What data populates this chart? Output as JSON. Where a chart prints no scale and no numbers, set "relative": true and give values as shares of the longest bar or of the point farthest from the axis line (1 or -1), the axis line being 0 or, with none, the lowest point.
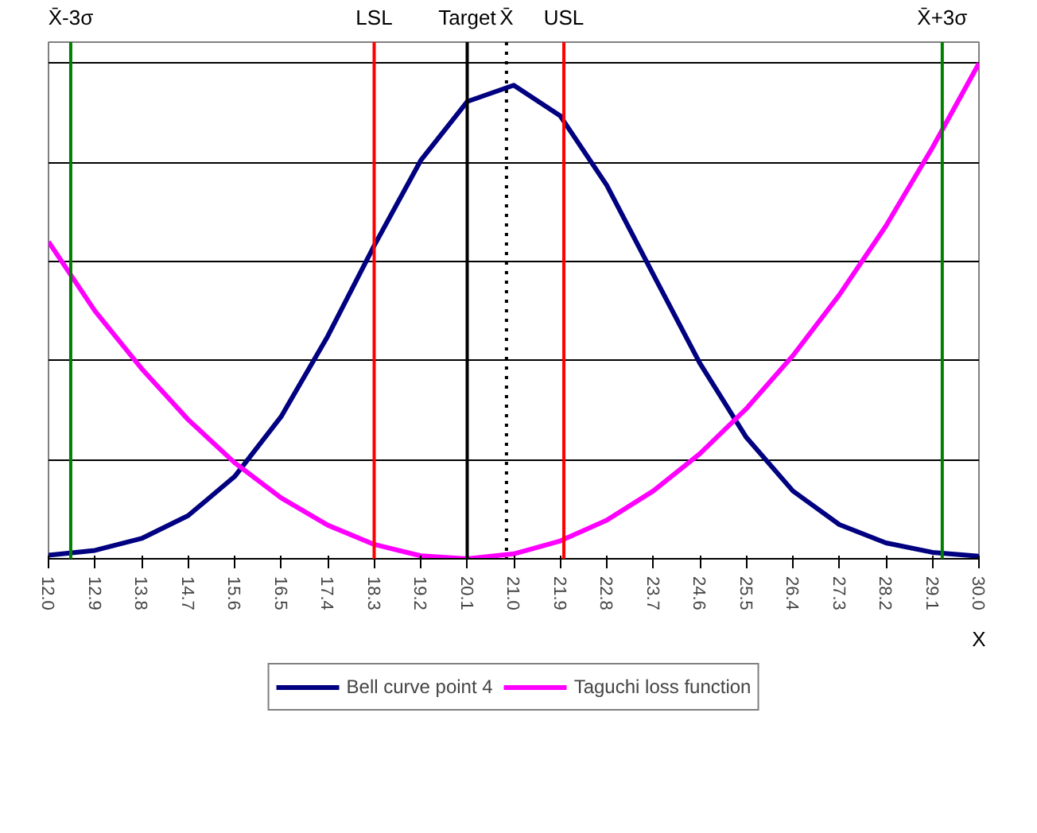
{
  "chart_data": {
    "type": "line",
    "xlabel": "X",
    "relative": true,
    "x": [
      12.0,
      12.9,
      13.8,
      14.7,
      15.6,
      16.5,
      17.4,
      18.3,
      19.2,
      20.1,
      21.0,
      21.9,
      22.8,
      23.7,
      24.6,
      25.5,
      26.4,
      27.3,
      28.2,
      29.1,
      30.0
    ],
    "series": [
      {
        "name": "Bell curve point 4",
        "color": "#000080",
        "values": [
          0.007,
          0.017,
          0.041,
          0.087,
          0.166,
          0.287,
          0.449,
          0.632,
          0.804,
          0.923,
          0.956,
          0.894,
          0.754,
          0.574,
          0.395,
          0.245,
          0.137,
          0.069,
          0.032,
          0.013,
          0.005
        ]
      },
      {
        "name": "Taguchi loss function",
        "color": "#ff00ff",
        "values": [
          0.64,
          0.5,
          0.384,
          0.281,
          0.194,
          0.123,
          0.068,
          0.029,
          0.006,
          0.0,
          0.01,
          0.036,
          0.078,
          0.137,
          0.212,
          0.303,
          0.41,
          0.533,
          0.672,
          0.83,
          1.0
        ]
      }
    ],
    "xlim": [
      12.0,
      30.0
    ],
    "xticks": [
      {
        "value": 12,
        "label": "12.0"
      },
      12.9,
      13.8,
      14.7,
      15.6,
      16.5,
      17.4,
      18.3,
      19.2,
      20.1,
      {
        "value": 21,
        "label": "21.0"
      },
      21.9,
      22.8,
      23.7,
      24.6,
      25.5,
      26.4,
      27.3,
      28.2,
      29.1,
      {
        "value": 30,
        "label": "30.0"
      }
    ],
    "ref_lines": [
      {
        "axis": "x",
        "value": 12.43,
        "label": "X̄-3σ",
        "color": "#008000"
      },
      {
        "axis": "x",
        "value": 18.3,
        "label": "LSL",
        "color": "#ff0000"
      },
      {
        "axis": "x",
        "value": 20.1,
        "label": "Target",
        "color": "#000000"
      },
      {
        "axis": "x",
        "value": 20.86,
        "label": "X̄",
        "color": "#000000",
        "line_style": "dotted"
      },
      {
        "axis": "x",
        "value": 21.97,
        "label": "USL",
        "color": "#ff0000"
      },
      {
        "axis": "x",
        "value": 29.29,
        "label": "X̄+3σ",
        "color": "#008000"
      }
    ],
    "grid": "y",
    "legend": "bottom",
    "tick_labels": "x",
    "marker": "none",
    "line_style": "solid"
  }
}
